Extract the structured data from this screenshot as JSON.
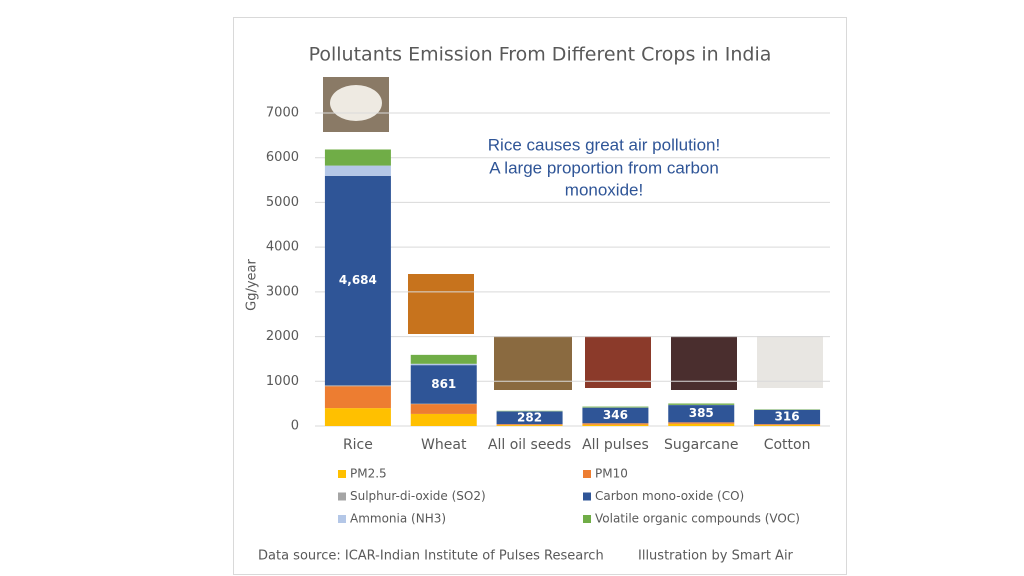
{
  "chart_data": {
    "type": "stacked-bar",
    "title": "Pollutants Emission From Different Crops in India",
    "y_label": "Gg/year",
    "annotation": [
      "Rice causes great air pollution!",
      "A large proportion from carbon",
      "monoxide!"
    ],
    "source": "Data source: ICAR-Indian Institute of Pulses Research",
    "credit": "Illustration by Smart Air",
    "categories": [
      "Rice",
      "Wheat",
      "All oil seeds",
      "All pulses",
      "Sugarcane",
      "Cotton"
    ],
    "ylim": [
      0,
      7500
    ],
    "yticks": [
      0,
      1000,
      2000,
      3000,
      4000,
      5000,
      6000,
      7000
    ],
    "grid": true,
    "series": [
      {
        "name": "PM2.5",
        "color": "#ffc000",
        "values": [
          400,
          270,
          20,
          30,
          50,
          20
        ]
      },
      {
        "name": "PM10",
        "color": "#ed7d31",
        "values": [
          490,
          220,
          20,
          30,
          30,
          20
        ]
      },
      {
        "name": "Sulphur-di-oxide (SO2)",
        "color": "#a5a5a5",
        "values": [
          20,
          10,
          3,
          3,
          3,
          3
        ]
      },
      {
        "name": "Carbon mono-oxide (CO)",
        "color": "#2f5597",
        "values": [
          4684,
          861,
          282,
          346,
          385,
          316
        ],
        "value_labels": [
          "4,684",
          "861",
          "282",
          "346",
          "385",
          "316"
        ]
      },
      {
        "name": "Ammonia (NH3)",
        "color": "#b4c7e7",
        "values": [
          230,
          30,
          5,
          5,
          5,
          5
        ]
      },
      {
        "name": "Volatile organic compounds (VOC)",
        "color": "#70ad47",
        "values": [
          360,
          200,
          10,
          20,
          30,
          10
        ]
      }
    ]
  }
}
